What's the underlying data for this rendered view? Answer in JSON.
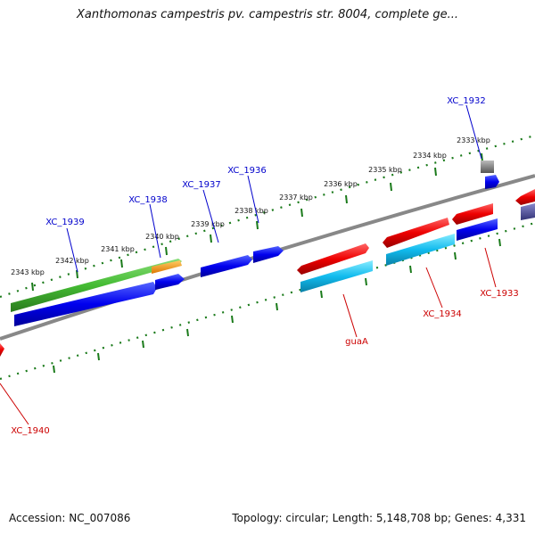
{
  "header": {
    "title": "Xanthomonas campestris pv. campestris str. 8004, complete ge..."
  },
  "footer": {
    "accession": "Accession: NC_007086",
    "topology": "Topology: circular; Length: 5,148,708 bp; Genes: 4,331"
  },
  "colors": {
    "forward_gene": "#0000dd",
    "reverse_gene": "#ee0000",
    "rna_gene": "#11bbee",
    "other_gene": "#44bb33",
    "pseudo_gene": "#777777",
    "forward_label": "#0000cc",
    "reverse_label": "#cc0000",
    "tick": "#1a7a1a",
    "backbone": "#888888"
  },
  "scale_ticks": [
    {
      "label": "2343 kbp"
    },
    {
      "label": "2342 kbp"
    },
    {
      "label": "2341 kbp"
    },
    {
      "label": "2340 kbp"
    },
    {
      "label": "2339 kbp"
    },
    {
      "label": "2338 kbp"
    },
    {
      "label": "2337 kbp"
    },
    {
      "label": "2336 kbp"
    },
    {
      "label": "2335 kbp"
    },
    {
      "label": "2334 kbp"
    },
    {
      "label": "2333 kbp"
    }
  ],
  "gene_labels": [
    {
      "name": "XC_1939",
      "strand": "forward"
    },
    {
      "name": "XC_1938",
      "strand": "forward"
    },
    {
      "name": "XC_1937",
      "strand": "forward"
    },
    {
      "name": "XC_1936",
      "strand": "forward"
    },
    {
      "name": "XC_1932",
      "strand": "forward"
    },
    {
      "name": "guaA",
      "strand": "reverse"
    },
    {
      "name": "XC_1934",
      "strand": "reverse"
    },
    {
      "name": "XC_1933",
      "strand": "reverse"
    },
    {
      "name": "XC_1940",
      "strand": "reverse"
    }
  ]
}
